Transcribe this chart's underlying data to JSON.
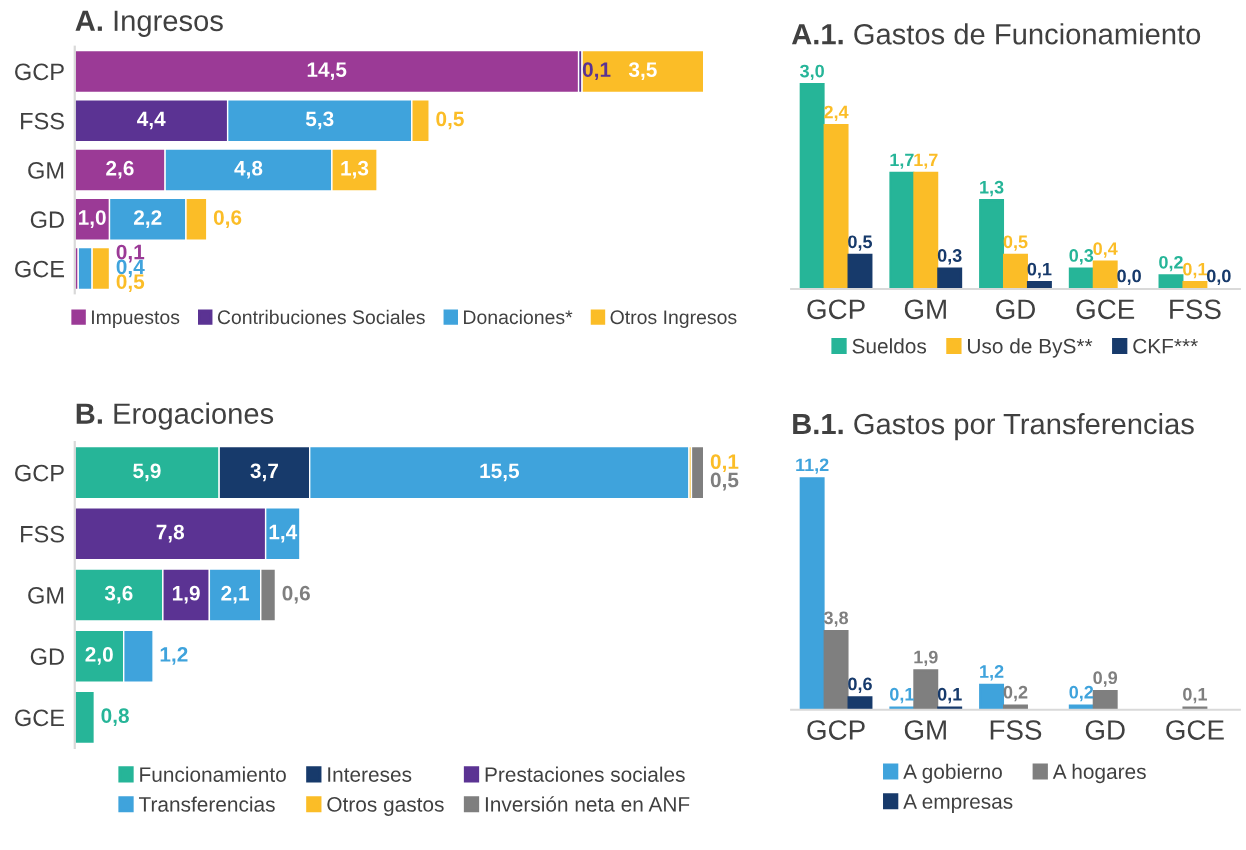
{
  "chart_data": [
    {
      "type": "bar",
      "title": "A. Ingresos",
      "orientation": "horizontal",
      "stacked": true,
      "data_labels": true,
      "legend": "bottom",
      "grid": false,
      "categories": [
        "GCP",
        "FSS",
        "GM",
        "GD",
        "GCE"
      ],
      "series": [
        {
          "name": "Impuestos",
          "color": "#9b3a96",
          "values": [
            14.5,
            null,
            2.6,
            1.0,
            0.1
          ],
          "value_labels": [
            "14,5",
            null,
            "2,6",
            "1,0",
            "0,1"
          ]
        },
        {
          "name": "Contribuciones Sociales",
          "color": "#5b3393",
          "values": [
            0.1,
            4.4,
            null,
            null,
            null
          ],
          "value_labels": [
            "0,1",
            "4,4",
            null,
            null,
            null
          ]
        },
        {
          "name": "Donaciones*",
          "color": "#3fa3dc",
          "values": [
            null,
            5.3,
            4.8,
            2.2,
            0.4
          ],
          "value_labels": [
            null,
            "5,3",
            "4,8",
            "2,2",
            "0,4"
          ]
        },
        {
          "name": "Otros Ingresos",
          "color": "#fbbd27",
          "values": [
            3.5,
            0.5,
            1.3,
            0.6,
            0.5
          ],
          "value_labels": [
            "3,5",
            "0,5",
            "1,3",
            "0,6",
            "0,5"
          ]
        }
      ]
    },
    {
      "type": "bar",
      "title": "A.1. Gastos de Funcionamiento",
      "data_labels": true,
      "legend": "bottom",
      "grid": false,
      "categories": [
        "GCP",
        "GM",
        "GD",
        "GCE",
        "FSS"
      ],
      "series": [
        {
          "name": "Sueldos",
          "color": "#26b598",
          "values": [
            3.0,
            1.7,
            1.3,
            0.3,
            0.2
          ],
          "value_labels": [
            "3,0",
            "1,7",
            "1,3",
            "0,3",
            "0,2"
          ]
        },
        {
          "name": "Uso de ByS**",
          "color": "#fbbd27",
          "values": [
            2.4,
            1.7,
            0.5,
            0.4,
            0.1
          ],
          "value_labels": [
            "2,4",
            "1,7",
            "0,5",
            "0,4",
            "0,1"
          ]
        },
        {
          "name": "CKF***",
          "color": "#173a6b",
          "values": [
            0.5,
            0.3,
            0.1,
            0.0,
            0.0
          ],
          "value_labels": [
            "0,5",
            "0,3",
            "0,1",
            "0,0",
            "0,0"
          ]
        }
      ]
    },
    {
      "type": "bar",
      "title": "B. Erogaciones",
      "orientation": "horizontal",
      "stacked": true,
      "data_labels": true,
      "legend": "bottom",
      "grid": false,
      "categories": [
        "GCP",
        "FSS",
        "GM",
        "GD",
        "GCE"
      ],
      "series": [
        {
          "name": "Funcionamiento",
          "color": "#26b598",
          "values": [
            5.9,
            null,
            3.6,
            2.0,
            0.8
          ],
          "value_labels": [
            "5,9",
            null,
            "3,6",
            "2,0",
            "0,8"
          ]
        },
        {
          "name": "Intereses",
          "color": "#173a6b",
          "values": [
            3.7,
            null,
            null,
            null,
            null
          ],
          "value_labels": [
            "3,7",
            null,
            null,
            null,
            null
          ]
        },
        {
          "name": "Prestaciones sociales",
          "color": "#5b3393",
          "values": [
            null,
            7.8,
            1.9,
            null,
            null
          ],
          "value_labels": [
            null,
            "7,8",
            "1,9",
            null,
            null
          ]
        },
        {
          "name": "Transferencias",
          "color": "#3fa3dc",
          "values": [
            15.5,
            1.4,
            2.1,
            1.2,
            null
          ],
          "value_labels": [
            "15,5",
            "1,4",
            "2,1",
            "1,2",
            null
          ]
        },
        {
          "name": "Otros gastos",
          "color": "#fbbd27",
          "values": [
            0.1,
            null,
            null,
            null,
            null
          ],
          "value_labels": [
            "0,1",
            null,
            null,
            null,
            null
          ]
        },
        {
          "name": "Inversión neta en ANF",
          "color": "#7f7f7f",
          "values": [
            0.5,
            null,
            0.6,
            null,
            null
          ],
          "value_labels": [
            "0,5",
            null,
            "0,6",
            null,
            null
          ]
        }
      ]
    },
    {
      "type": "bar",
      "title": "B.1. Gastos por Transferencias",
      "data_labels": true,
      "legend": "bottom",
      "grid": false,
      "categories": [
        "GCP",
        "GM",
        "FSS",
        "GD",
        "GCE"
      ],
      "series": [
        {
          "name": "A gobierno",
          "color": "#3fa3dc",
          "values": [
            11.2,
            0.1,
            1.2,
            0.2,
            null
          ],
          "value_labels": [
            "11,2",
            "0,1",
            "1,2",
            "0,2",
            null
          ]
        },
        {
          "name": "A hogares",
          "color": "#7f7f7f",
          "values": [
            3.8,
            1.9,
            0.2,
            0.9,
            0.1
          ],
          "value_labels": [
            "3,8",
            "1,9",
            "0,2",
            "0,9",
            "0,1"
          ]
        },
        {
          "name": "A empresas",
          "color": "#173a6b",
          "values": [
            0.6,
            0.1,
            null,
            null,
            null
          ],
          "value_labels": [
            "0,6",
            "0,1",
            null,
            null,
            null
          ]
        }
      ]
    }
  ]
}
